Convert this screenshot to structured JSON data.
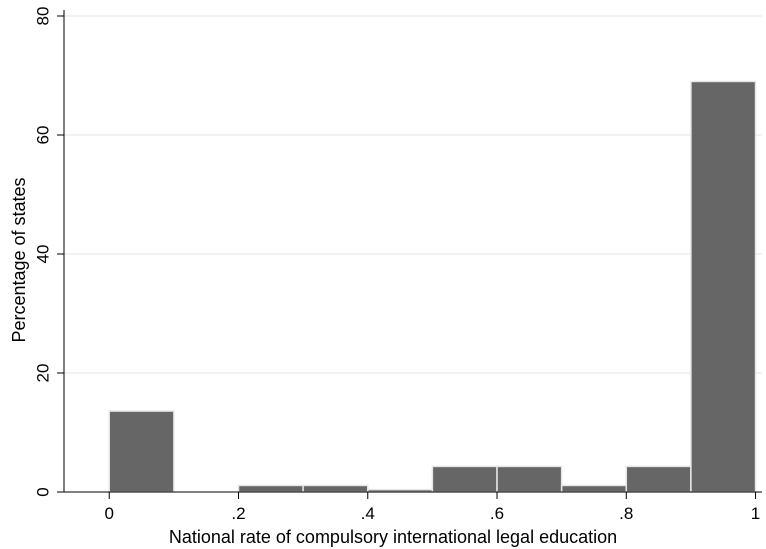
{
  "chart_data": {
    "type": "bar",
    "title": "",
    "xlabel": "National rate of compulsory international legal education",
    "ylabel": "Percentage of states",
    "xlim": [
      -0.07,
      1.01
    ],
    "ylim": [
      0,
      80
    ],
    "grid": true,
    "bin_width": 0.1,
    "bins": [
      {
        "x0": 0.0,
        "x1": 0.1,
        "value": 13.6
      },
      {
        "x0": 0.1,
        "x1": 0.2,
        "value": 0
      },
      {
        "x0": 0.2,
        "x1": 0.3,
        "value": 1.1
      },
      {
        "x0": 0.3,
        "x1": 0.4,
        "value": 1.1
      },
      {
        "x0": 0.4,
        "x1": 0.5,
        "value": 0.4
      },
      {
        "x0": 0.5,
        "x1": 0.6,
        "value": 4.3
      },
      {
        "x0": 0.6,
        "x1": 0.7,
        "value": 4.3
      },
      {
        "x0": 0.7,
        "x1": 0.8,
        "value": 1.1
      },
      {
        "x0": 0.8,
        "x1": 0.9,
        "value": 4.3
      },
      {
        "x0": 0.9,
        "x1": 1.0,
        "value": 69.0
      }
    ],
    "x_ticks": [
      {
        "value": 0,
        "label": "0"
      },
      {
        "value": 0.2,
        "label": ".2"
      },
      {
        "value": 0.4,
        "label": ".4"
      },
      {
        "value": 0.6,
        "label": ".6"
      },
      {
        "value": 0.8,
        "label": ".8"
      },
      {
        "value": 1.0,
        "label": "1"
      }
    ],
    "y_ticks": [
      {
        "value": 0,
        "label": "0"
      },
      {
        "value": 20,
        "label": "20"
      },
      {
        "value": 40,
        "label": "40"
      },
      {
        "value": 60,
        "label": "60"
      },
      {
        "value": 80,
        "label": "80"
      }
    ],
    "colors": {
      "bar_fill": "#666666",
      "bar_edge": "#e6e6e6",
      "grid": "#e6e6e6",
      "axis": "#000000"
    }
  }
}
